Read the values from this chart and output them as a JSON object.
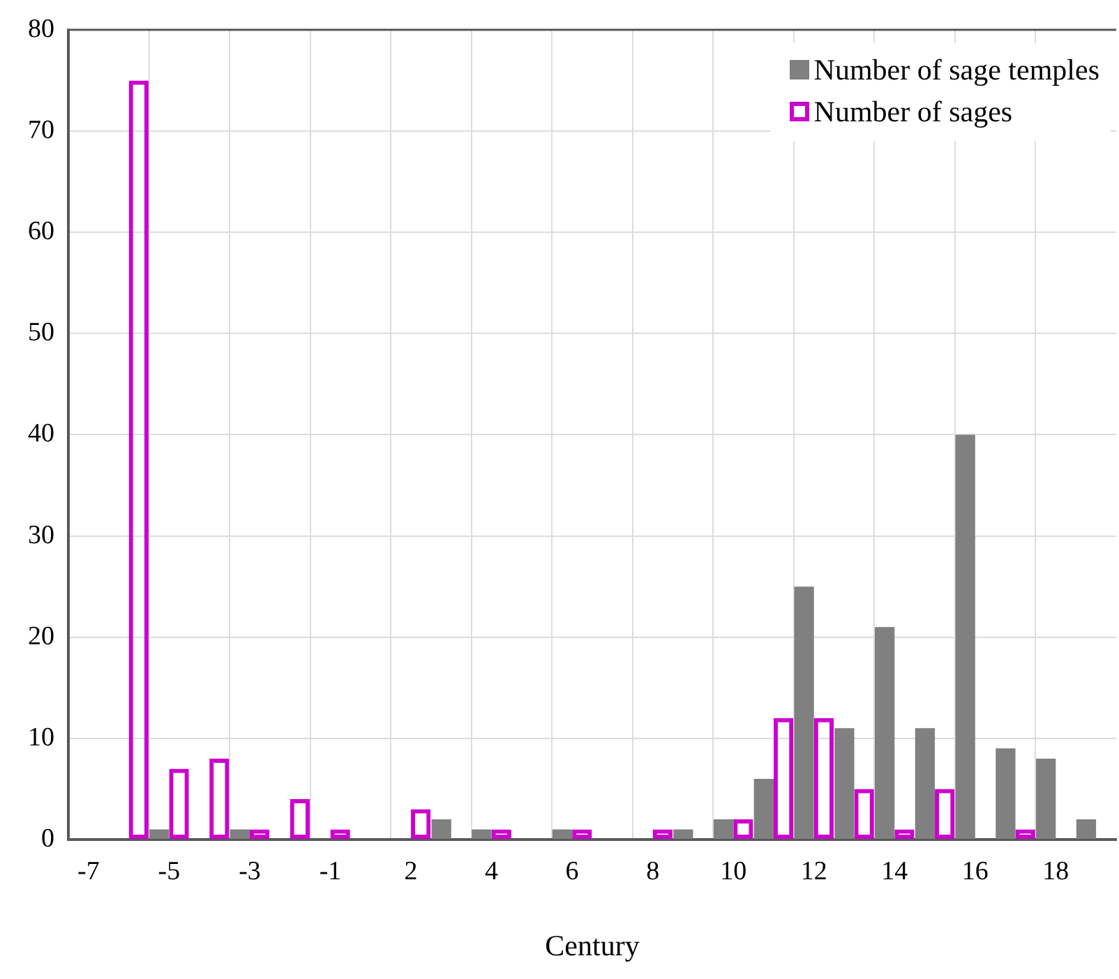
{
  "chart_data": {
    "type": "bar",
    "xlabel": "Century",
    "categories": [
      "-7",
      null,
      "-5",
      null,
      "-3",
      null,
      "-1",
      null,
      "2",
      null,
      "4",
      null,
      "6",
      null,
      "8",
      null,
      "10",
      null,
      "12",
      null,
      "14",
      null,
      "16",
      null,
      "18",
      null
    ],
    "series": [
      {
        "name": "Number of sage temples",
        "color": "#808080",
        "values": [
          0,
          0,
          1,
          0,
          1,
          0,
          0,
          0,
          0,
          2,
          1,
          0,
          1,
          0,
          0,
          1,
          2,
          6,
          25,
          11,
          21,
          11,
          40,
          9,
          8,
          2
        ]
      },
      {
        "name": "Number of sages",
        "color": "#cc00cc",
        "values": [
          0,
          75,
          7,
          8,
          1,
          4,
          1,
          0,
          3,
          0,
          1,
          0,
          1,
          0,
          1,
          0,
          2,
          12,
          12,
          5,
          1,
          5,
          0,
          1,
          0,
          0
        ]
      }
    ],
    "ylim": [
      0,
      80
    ],
    "yticks": [
      0,
      10,
      20,
      30,
      40,
      50,
      60,
      70,
      80
    ],
    "grid": true,
    "legend": "top right"
  }
}
